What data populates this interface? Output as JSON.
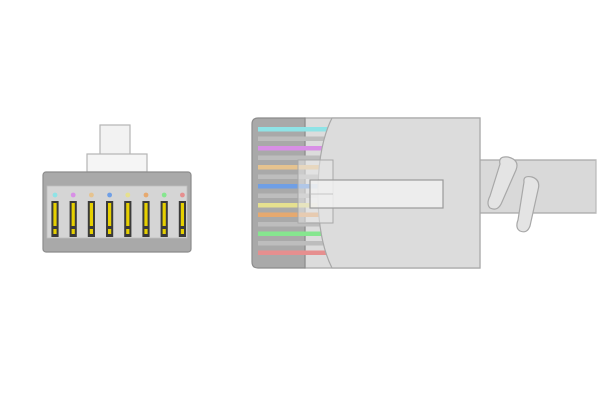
{
  "figure": {
    "background": "#ffffff",
    "front_view": {
      "name": "rj45-connector-front-view",
      "pin_count": 8,
      "body_color": "#a9a9a9",
      "face_color": "#d5d5d5",
      "latch_color": "#f2f2f2",
      "contact_color": "#e6d000",
      "pin_dot_colors": [
        "#8fe3e6",
        "#d88fe6",
        "#e6c38f",
        "#6f9fe6",
        "#e6e08f",
        "#e6a96f",
        "#86e68f",
        "#e68f8f"
      ]
    },
    "side_view": {
      "name": "rj45-connector-side-view",
      "boot_color": "#dcdcdc",
      "cable_color": "#d9d9d9",
      "clip_color": "#f0f0f0",
      "body_color": "#a9a9a9",
      "wire_colors": [
        "#8fe3e6",
        "#bdbdbd",
        "#d88fe6",
        "#bdbdbd",
        "#e6c38f",
        "#bdbdbd",
        "#6f9fe6",
        "#bdbdbd",
        "#e6e08f",
        "#e6a96f",
        "#bdbdbd",
        "#86e68f",
        "#bdbdbd",
        "#e68f8f"
      ]
    }
  }
}
